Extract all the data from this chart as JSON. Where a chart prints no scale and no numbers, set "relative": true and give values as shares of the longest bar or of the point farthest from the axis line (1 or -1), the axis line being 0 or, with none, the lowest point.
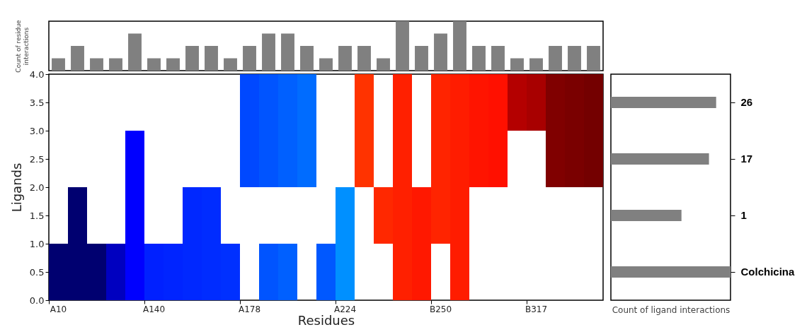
{
  "chart_data": [
    {
      "type": "bar",
      "categories": [
        null,
        null,
        null,
        null,
        null,
        null,
        null,
        null,
        null,
        null,
        null,
        null,
        null,
        null,
        null,
        null,
        null,
        null,
        null,
        null,
        null,
        null,
        null,
        null,
        null,
        null,
        null,
        null,
        null
      ],
      "values": [
        0.25,
        0.5,
        0.25,
        0.25,
        0.75,
        0.25,
        0.25,
        0.5,
        0.5,
        0.25,
        0.5,
        0.75,
        0.75,
        0.5,
        0.25,
        0.5,
        0.5,
        0.25,
        1,
        0.5,
        0.75,
        1,
        0.5,
        0.5,
        0.25,
        0.25,
        0.5,
        0.5,
        0.5
      ],
      "color": "#808080",
      "relative": true,
      "ylabel": "Count of residue interactions"
    },
    {
      "type": "bar",
      "xlabel": "Residues",
      "ylabel": "Ligands",
      "categories": [
        "A10",
        null,
        null,
        null,
        null,
        "A140",
        null,
        null,
        null,
        null,
        "A178",
        null,
        null,
        null,
        null,
        "A224",
        null,
        null,
        null,
        null,
        "B250",
        null,
        null,
        null,
        null,
        "B317",
        null,
        null,
        null
      ],
      "ylim": [
        0,
        4
      ],
      "yticks": [
        {
          "value": 0,
          "label": "0.0"
        },
        {
          "value": 0.5,
          "label": "0.5"
        },
        {
          "value": 1,
          "label": "1.0"
        },
        {
          "value": 1.5,
          "label": "1.5"
        },
        {
          "value": 2,
          "label": "2.0"
        },
        {
          "value": 2.5,
          "label": "2.5"
        },
        {
          "value": 3,
          "label": "3.0"
        },
        {
          "value": 3.5,
          "label": "3.5"
        },
        {
          "value": 4,
          "label": "4.0"
        }
      ],
      "grid": false,
      "series": [
        {
          "base": [
            0,
            0,
            0,
            0,
            0,
            0,
            0,
            0,
            0,
            0,
            null,
            0,
            0,
            null,
            0,
            0,
            null,
            null,
            0,
            0,
            null,
            0,
            null,
            null,
            null,
            null,
            null,
            null,
            null
          ],
          "values": [
            1,
            1,
            1,
            1,
            1,
            1,
            1,
            1,
            1,
            1,
            null,
            1,
            1,
            null,
            1,
            1,
            null,
            null,
            1,
            1,
            null,
            1,
            null,
            null,
            null,
            null,
            null,
            null,
            null
          ],
          "colors": [
            "#000070",
            "#000070",
            "#000070",
            "#0000c0",
            "#0000ff",
            "#0020ff",
            "#0024ff",
            "#0028ff",
            "#002cff",
            "#0030ff",
            null,
            "#0054ff",
            "#0060ff",
            null,
            "#0058ff",
            "#0090ff",
            null,
            null,
            "#ff2000",
            "#ff1800",
            null,
            "#ff1c00",
            null,
            null,
            null,
            null,
            null,
            null,
            null
          ]
        },
        {
          "base": [
            null,
            1,
            null,
            null,
            1,
            null,
            null,
            1,
            1,
            null,
            null,
            null,
            null,
            null,
            null,
            1,
            null,
            1,
            1,
            1,
            1,
            1,
            null,
            null,
            null,
            null,
            null,
            null,
            null
          ],
          "values": [
            null,
            1,
            null,
            null,
            1,
            null,
            null,
            1,
            1,
            null,
            null,
            null,
            null,
            null,
            null,
            1,
            null,
            1,
            1,
            1,
            1,
            1,
            null,
            null,
            null,
            null,
            null,
            null,
            null
          ],
          "colors": [
            null,
            "#000070",
            null,
            null,
            "#0000ff",
            null,
            null,
            "#0028ff",
            "#002cff",
            null,
            null,
            null,
            null,
            null,
            null,
            "#0090ff",
            null,
            "#ff2800",
            "#ff2000",
            "#ff1800",
            "#ff2400",
            "#ff1c00",
            null,
            null,
            null,
            null,
            null,
            null,
            null
          ]
        },
        {
          "base": [
            null,
            null,
            null,
            null,
            2,
            null,
            null,
            null,
            null,
            null,
            2,
            2,
            2,
            2,
            null,
            null,
            2,
            null,
            2,
            null,
            2,
            2,
            2,
            2,
            null,
            null,
            2,
            2,
            2
          ],
          "values": [
            null,
            null,
            null,
            null,
            1,
            null,
            null,
            null,
            null,
            null,
            1,
            1,
            1,
            1,
            null,
            null,
            1,
            null,
            1,
            null,
            1,
            1,
            1,
            1,
            null,
            null,
            1,
            1,
            1
          ],
          "colors": [
            null,
            null,
            null,
            null,
            "#0000ff",
            null,
            null,
            null,
            null,
            null,
            "#0048ff",
            "#0054ff",
            "#0060ff",
            "#006cff",
            null,
            null,
            "#ff3300",
            null,
            "#ff2000",
            null,
            "#ff2400",
            "#ff1c00",
            "#ff1400",
            "#ff1000",
            null,
            null,
            "#800000",
            "#7a0000",
            "#740000"
          ]
        },
        {
          "base": [
            null,
            null,
            null,
            null,
            null,
            null,
            null,
            null,
            null,
            null,
            3,
            3,
            3,
            3,
            null,
            null,
            3,
            null,
            3,
            null,
            3,
            3,
            3,
            3,
            3,
            3,
            3,
            3,
            3
          ],
          "values": [
            null,
            null,
            null,
            null,
            null,
            null,
            null,
            null,
            null,
            null,
            1,
            1,
            1,
            1,
            null,
            null,
            1,
            null,
            1,
            null,
            1,
            1,
            1,
            1,
            1,
            1,
            1,
            1,
            1
          ],
          "colors": [
            null,
            null,
            null,
            null,
            null,
            null,
            null,
            null,
            null,
            null,
            "#0048ff",
            "#0054ff",
            "#0060ff",
            "#006cff",
            null,
            null,
            "#ff3300",
            null,
            "#ff2000",
            null,
            "#ff2400",
            "#ff1c00",
            "#ff1400",
            "#ff1000",
            "#b40000",
            "#a80000",
            "#800000",
            "#7a0000",
            "#740000"
          ]
        }
      ]
    },
    {
      "type": "bar",
      "orientation": "horizontal",
      "categories": [
        "26",
        "17",
        "1",
        "Colchicina"
      ],
      "values": [
        0.88,
        0.82,
        0.59,
        1
      ],
      "color": "#808080",
      "relative": true,
      "xlabel": "Count of ligand interactions"
    }
  ]
}
